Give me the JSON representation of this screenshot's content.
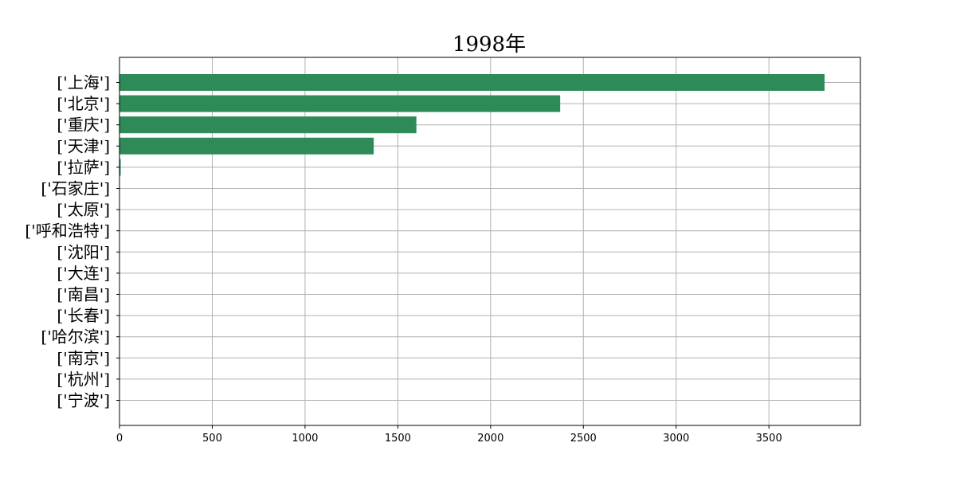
{
  "chart_data": {
    "type": "bar",
    "orientation": "horizontal",
    "title": "1998年",
    "xlabel": "",
    "ylabel": "",
    "categories": [
      "['上海']",
      "['北京']",
      "['重庆']",
      "['天津']",
      "['拉萨']",
      "['石家庄']",
      "['太原']",
      "['呼和浩特']",
      "['沈阳']",
      "['大连']",
      "['南昌']",
      "['长春']",
      "['哈尔滨']",
      "['南京']",
      "['杭州']",
      "['宁波']"
    ],
    "values": [
      3800,
      2375,
      1600,
      1370,
      5,
      0,
      0,
      0,
      0,
      0,
      0,
      0,
      0,
      0,
      0,
      0
    ],
    "xlim": [
      0,
      4000
    ],
    "xticks": [
      0,
      500,
      1000,
      1500,
      2000,
      2500,
      3000,
      3500
    ],
    "grid": true,
    "bar_color": "#2e8b57"
  }
}
